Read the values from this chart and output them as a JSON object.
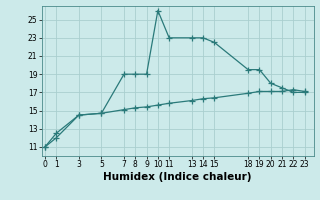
{
  "xlabel": "Humidex (Indice chaleur)",
  "line1_x": [
    0,
    1,
    3,
    5,
    7,
    8,
    9,
    10,
    11,
    13,
    14,
    15,
    18,
    19,
    20,
    21,
    22,
    23
  ],
  "line1_y": [
    11,
    12.5,
    14.5,
    14.7,
    19,
    19,
    19,
    26,
    23,
    23,
    23,
    22.5,
    19.5,
    19.5,
    18,
    17.5,
    17,
    17
  ],
  "line2_x": [
    0,
    1,
    3,
    5,
    7,
    8,
    9,
    10,
    11,
    13,
    14,
    15,
    18,
    19,
    20,
    21,
    22,
    23
  ],
  "line2_y": [
    11,
    12,
    14.5,
    14.7,
    15.1,
    15.3,
    15.4,
    15.6,
    15.8,
    16.1,
    16.3,
    16.4,
    16.9,
    17.1,
    17.1,
    17.1,
    17.3,
    17.1
  ],
  "line_color": "#2a7a7a",
  "bg_color": "#cceaea",
  "grid_color": "#aacfcf",
  "xlim": [
    -0.3,
    23.8
  ],
  "ylim": [
    10.0,
    26.5
  ],
  "yticks": [
    11,
    13,
    15,
    17,
    19,
    21,
    23,
    25
  ],
  "xticks": [
    0,
    1,
    3,
    5,
    7,
    8,
    9,
    10,
    11,
    13,
    14,
    15,
    18,
    19,
    20,
    21,
    22,
    23
  ],
  "tick_fontsize": 5.5,
  "xlabel_fontsize": 7.5
}
